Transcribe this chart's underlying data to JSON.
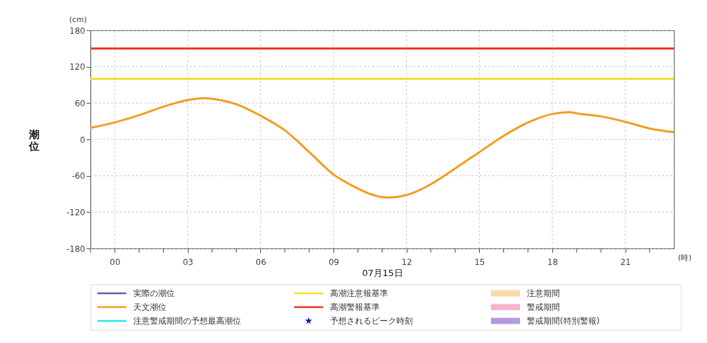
{
  "chart_data": {
    "type": "line",
    "xlabel": "07月15日",
    "ylabel": "潮位",
    "annotations": [
      "(cm)",
      "(時)"
    ],
    "xlim": [
      -1,
      23
    ],
    "ylim": [
      -180,
      180
    ],
    "xticks": [
      {
        "value": -1,
        "label": null
      },
      {
        "value": 0,
        "label": "00"
      },
      {
        "value": 1,
        "label": null
      },
      {
        "value": 2,
        "label": null
      },
      {
        "value": 3,
        "label": "03"
      },
      {
        "value": 4,
        "label": null
      },
      {
        "value": 5,
        "label": null
      },
      {
        "value": 6,
        "label": "06"
      },
      {
        "value": 7,
        "label": null
      },
      {
        "value": 8,
        "label": null
      },
      {
        "value": 9,
        "label": "09"
      },
      {
        "value": 10,
        "label": null
      },
      {
        "value": 11,
        "label": null
      },
      {
        "value": 12,
        "label": "12"
      },
      {
        "value": 13,
        "label": null
      },
      {
        "value": 14,
        "label": null
      },
      {
        "value": 15,
        "label": "15"
      },
      {
        "value": 16,
        "label": null
      },
      {
        "value": 17,
        "label": null
      },
      {
        "value": 18,
        "label": "18"
      },
      {
        "value": 19,
        "label": null
      },
      {
        "value": 20,
        "label": null
      },
      {
        "value": 21,
        "label": "21"
      },
      {
        "value": 22,
        "label": null
      }
    ],
    "yticks": [
      -180,
      -120,
      -60,
      0,
      60,
      120,
      180
    ],
    "grid": true,
    "legend": "bottom",
    "line_style": "solid",
    "series": [
      {
        "name": "実際の潮位",
        "color": "#7b52ab"
      },
      {
        "name": "天文潮位",
        "color": "#f39c1f",
        "x": [
          -1,
          0,
          1,
          2,
          3,
          3.7,
          4,
          5,
          6,
          7,
          8,
          9,
          10,
          10.5,
          11.2,
          12,
          13,
          14,
          15,
          16,
          17,
          18,
          18.7,
          19,
          20,
          21,
          22,
          23
        ],
        "values": [
          19,
          28,
          40,
          54,
          65,
          68,
          67,
          58,
          39,
          15,
          -21,
          -58,
          -81,
          -90,
          -96,
          -92,
          -74,
          -48,
          -21,
          6,
          28,
          42,
          45,
          43,
          38,
          29,
          18,
          12
        ]
      },
      {
        "name": "注意警戒期間の予想最高潮位",
        "color": "#1de9e9"
      },
      {
        "name": "高潮注意報基準",
        "color": "#f0e020",
        "x": [
          -1,
          23
        ],
        "values": [
          100,
          100
        ]
      },
      {
        "name": "高潮警報基準",
        "color": "#e8321e",
        "x": [
          -1,
          23
        ],
        "values": [
          150,
          150
        ]
      },
      {
        "name": "予想されるピーク時刻",
        "type": "scatter",
        "marker": "star",
        "color": "#0a14d2"
      },
      {
        "name": "注意期間",
        "type": "area",
        "color": "#fcd9a8"
      },
      {
        "name": "警戒期間",
        "type": "area",
        "color": "#f8b4cc"
      },
      {
        "name": "警戒期間(特別警報)",
        "type": "area",
        "color": "#b39ae0"
      }
    ]
  }
}
